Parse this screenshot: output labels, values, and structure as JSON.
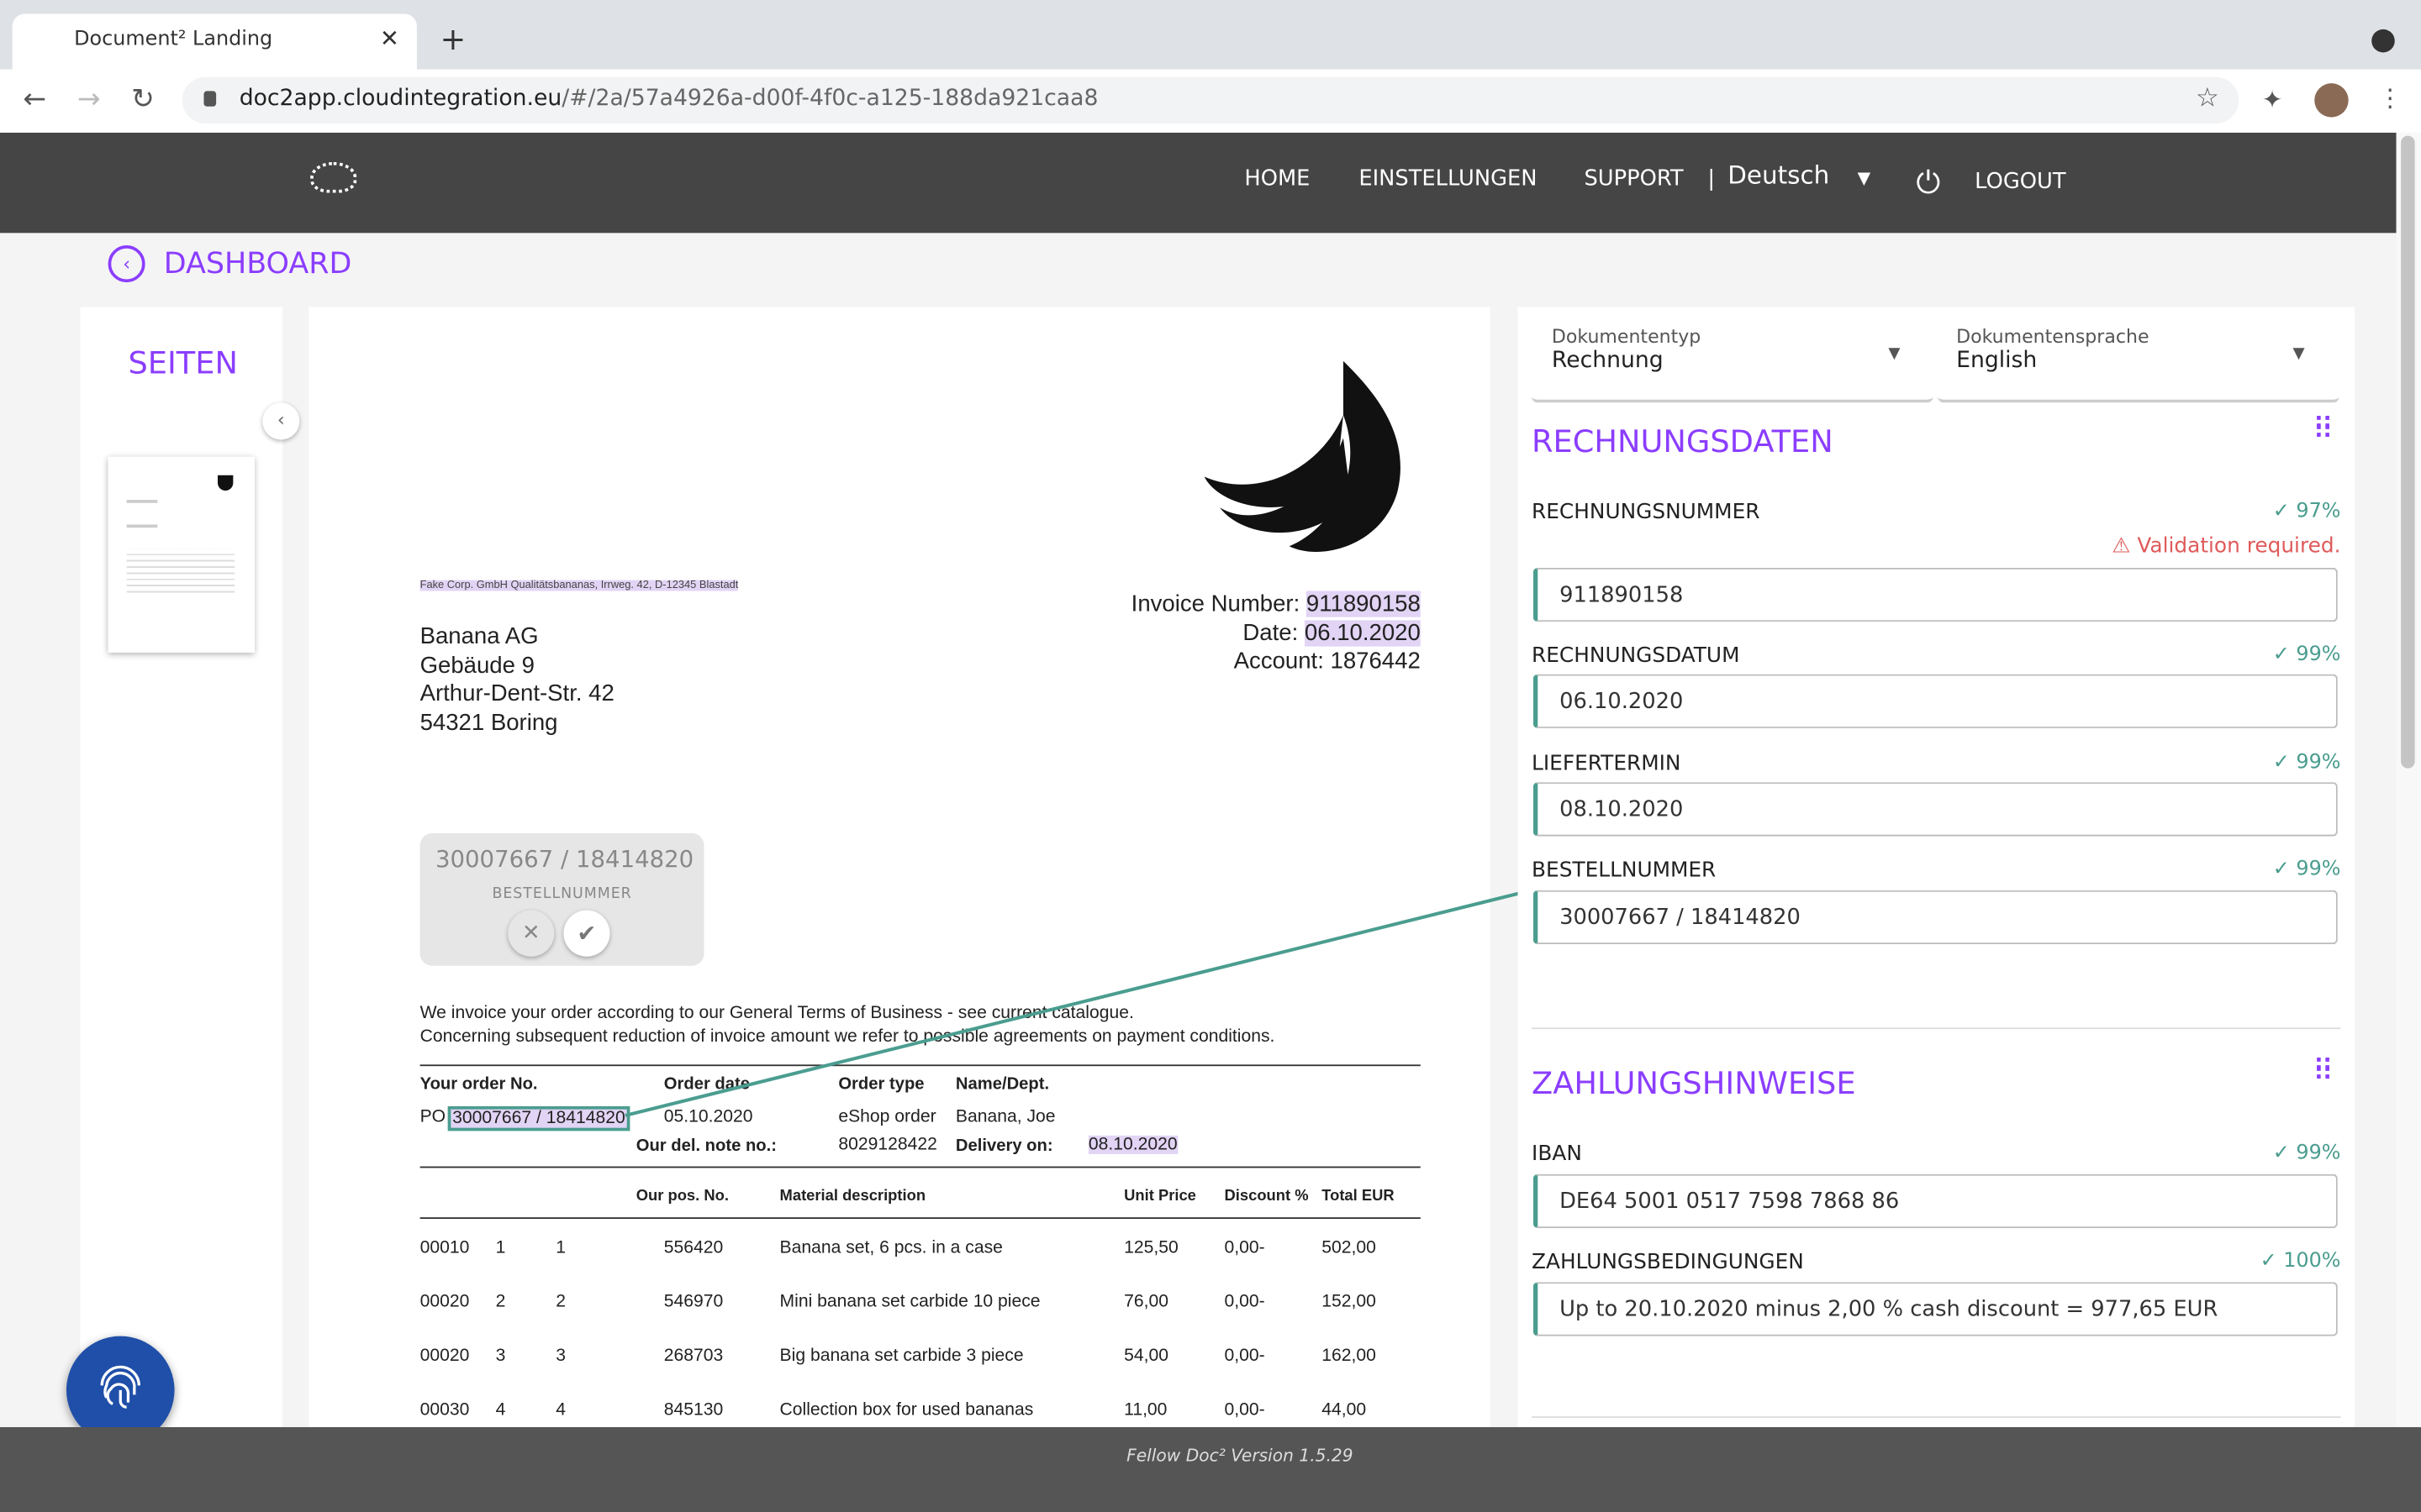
{
  "browser": {
    "tab_title": "Document² Landing",
    "url_host": "doc2app.cloudintegration.eu",
    "url_path": "/#/2a/57a4926a-d00f-4f0c-a125-188da921caa8"
  },
  "header": {
    "nav": [
      "HOME",
      "EINSTELLUNGEN",
      "SUPPORT"
    ],
    "language": "Deutsch",
    "logout": "LOGOUT"
  },
  "back_label": "DASHBOARD",
  "pages_title": "SEITEN",
  "document": {
    "sender_line": "Fake Corp. GmbH Qualitätsbananas, Irrweg. 42, D-12345 Blastadt",
    "address": [
      "Banana AG",
      "Gebäude 9",
      "Arthur-Dent-Str. 42",
      "54321 Boring"
    ],
    "invoice_number_label": "Invoice Number:",
    "invoice_number": "911890158",
    "date_label": "Date:",
    "date": "06.10.2020",
    "account": "Account: 1876442",
    "intro": [
      "We invoice your order according to our General Terms of Business - see current catalogue.",
      "Concerning subsequent reduction of invoice amount we refer to possible agreements on payment conditions."
    ],
    "order_headers": [
      "Your order No.",
      "Order date",
      "Order type",
      "Name/Dept."
    ],
    "order_no_prefix": "PO",
    "order_no": "30007667 / 18414820",
    "order_date": "05.10.2020",
    "order_type": "eShop order",
    "name": "Banana, Joe",
    "del_note_label": "Our del. note no.:",
    "del_note": "8029128422",
    "delivery_label": "Delivery on:",
    "delivery_date": "08.10.2020",
    "item_headers": [
      "Our pos. No.",
      "Material description",
      "Unit Price",
      "Discount %",
      "Total EUR"
    ],
    "items": [
      {
        "c1": "00010",
        "c2": "1",
        "c3": "1",
        "pos": "556420",
        "desc": "Banana set, 6 pcs. in a case",
        "price": "125,50",
        "disc": "0,00-",
        "total": "502,00"
      },
      {
        "c1": "00020",
        "c2": "2",
        "c3": "2",
        "pos": "546970",
        "desc": "Mini banana set carbide 10 piece",
        "price": "76,00",
        "disc": "0,00-",
        "total": "152,00"
      },
      {
        "c1": "00020",
        "c2": "3",
        "c3": "3",
        "pos": "268703",
        "desc": "Big banana set carbide 3 piece",
        "price": "54,00",
        "disc": "0,00-",
        "total": "162,00"
      },
      {
        "c1": "00030",
        "c2": "4",
        "c3": "4",
        "pos": "845130",
        "desc": "Collection box for used bananas",
        "price": "11,00",
        "disc": "0,00-",
        "total": "44,00"
      }
    ]
  },
  "popup": {
    "value": "30007667 / 18414820",
    "label": "BESTELLNUMMER"
  },
  "panel": {
    "doc_type_label": "Dokumententyp",
    "doc_type": "Rechnung",
    "doc_lang_label": "Dokumentensprache",
    "doc_lang": "English",
    "section1": "RECHNUNGSDATEN",
    "validation": "Validation required.",
    "fields1": [
      {
        "label": "RECHNUNGSNUMMER",
        "conf": "97%",
        "value": "911890158"
      },
      {
        "label": "RECHNUNGSDATUM",
        "conf": "99%",
        "value": "06.10.2020"
      },
      {
        "label": "LIEFERTERMIN",
        "conf": "99%",
        "value": "08.10.2020"
      },
      {
        "label": "BESTELLNUMMER",
        "conf": "99%",
        "value": "30007667 / 18414820"
      }
    ],
    "section2": "ZAHLUNGSHINWEISE",
    "fields2": [
      {
        "label": "IBAN",
        "conf": "99%",
        "value": "DE64 5001 0517 7598 7868 86"
      },
      {
        "label": "ZAHLUNGSBEDINGUNGEN",
        "conf": "100%",
        "value": "Up to 20.10.2020 minus 2,00 % cash discount = 977,65 EUR"
      }
    ]
  },
  "footer": "Fellow Doc² Version 1.5.29",
  "colors": {
    "accent": "#8b3dff",
    "teal": "#4a9d8f",
    "warning": "#e05a5a",
    "header": "#454545"
  }
}
